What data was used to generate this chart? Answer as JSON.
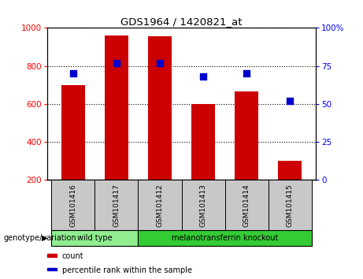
{
  "title": "GDS1964 / 1420821_at",
  "samples": [
    "GSM101416",
    "GSM101417",
    "GSM101412",
    "GSM101413",
    "GSM101414",
    "GSM101415"
  ],
  "counts": [
    700,
    960,
    958,
    600,
    665,
    300
  ],
  "percentiles": [
    70,
    77,
    77,
    68,
    70,
    52
  ],
  "ylim_left": [
    200,
    1000
  ],
  "ylim_right": [
    0,
    100
  ],
  "yticks_left": [
    200,
    400,
    600,
    800,
    1000
  ],
  "yticks_right": [
    0,
    25,
    50,
    75,
    100
  ],
  "yticklabels_right": [
    "0",
    "25",
    "50",
    "75",
    "100%"
  ],
  "bar_color": "#CC0000",
  "scatter_color": "#0000CC",
  "bar_bottom": 200,
  "groups": [
    {
      "label": "wild type",
      "indices": [
        0,
        1
      ],
      "color": "#90EE90"
    },
    {
      "label": "melanotransferrin knockout",
      "indices": [
        2,
        3,
        4,
        5
      ],
      "color": "#33CC33"
    }
  ],
  "group_label_prefix": "genotype/variation",
  "legend_items": [
    {
      "color": "#CC0000",
      "label": "count"
    },
    {
      "color": "#0000CC",
      "label": "percentile rank within the sample"
    }
  ],
  "grid_color": "black",
  "grid_linestyle": "dotted",
  "grid_linewidth": 0.8,
  "sample_area_color": "#C8C8C8",
  "plot_bg_color": "#FFFFFF",
  "spine_color": "#000000",
  "bar_width": 0.55,
  "scatter_size": 35,
  "scatter_marker": "s",
  "fig_width": 4.61,
  "fig_height": 3.54,
  "dpi": 100
}
